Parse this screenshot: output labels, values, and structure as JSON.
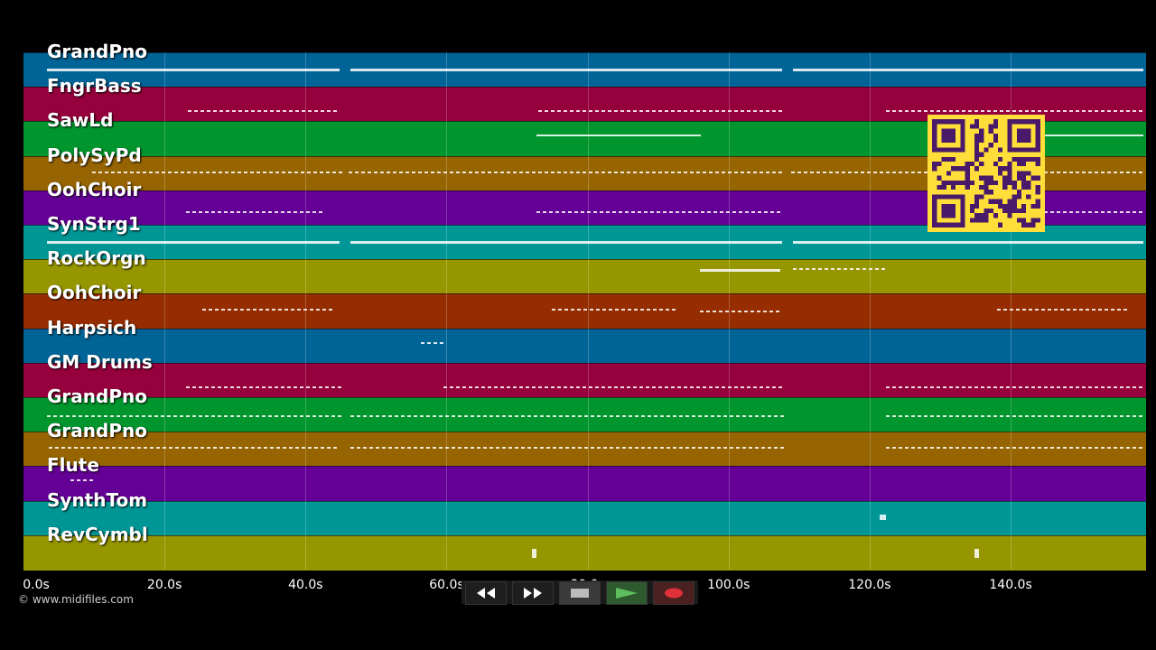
{
  "tracks": [
    {
      "name": "GrandPno",
      "color": "#006497"
    },
    {
      "name": "FngrBass",
      "color": "#96003c"
    },
    {
      "name": "SawLd",
      "color": "#00962d"
    },
    {
      "name": "PolySyPd",
      "color": "#966400"
    },
    {
      "name": "OohChoir",
      "color": "#640096"
    },
    {
      "name": "SynStrg1",
      "color": "#009696"
    },
    {
      "name": "RockOrgn",
      "color": "#969600"
    },
    {
      "name": "OohChoir",
      "color": "#962d00"
    },
    {
      "name": "Harpsich",
      "color": "#006497"
    },
    {
      "name": "GM Drums",
      "color": "#96003c"
    },
    {
      "name": "GrandPno",
      "color": "#00962d"
    },
    {
      "name": "GrandPno",
      "color": "#966400"
    },
    {
      "name": "Flute",
      "color": "#640096"
    },
    {
      "name": "SynthTom",
      "color": "#009696"
    },
    {
      "name": "RevCymbl",
      "color": "#969600"
    }
  ],
  "timeline": {
    "max_seconds": 160,
    "ticks": [
      "0.0s",
      "20.0s",
      "40.0s",
      "60.0s",
      "80.0s",
      "100.0s",
      "120.0s",
      "140.0s"
    ]
  },
  "copyright": "© www.midifiles.com",
  "transport": [
    {
      "name": "rewind-icon"
    },
    {
      "name": "fast-forward-icon"
    },
    {
      "name": "stop-icon"
    },
    {
      "name": "play-icon"
    },
    {
      "name": "record-icon"
    }
  ],
  "qr_code": {
    "color": "#ffde39",
    "module_color": "#4a1a6a"
  }
}
